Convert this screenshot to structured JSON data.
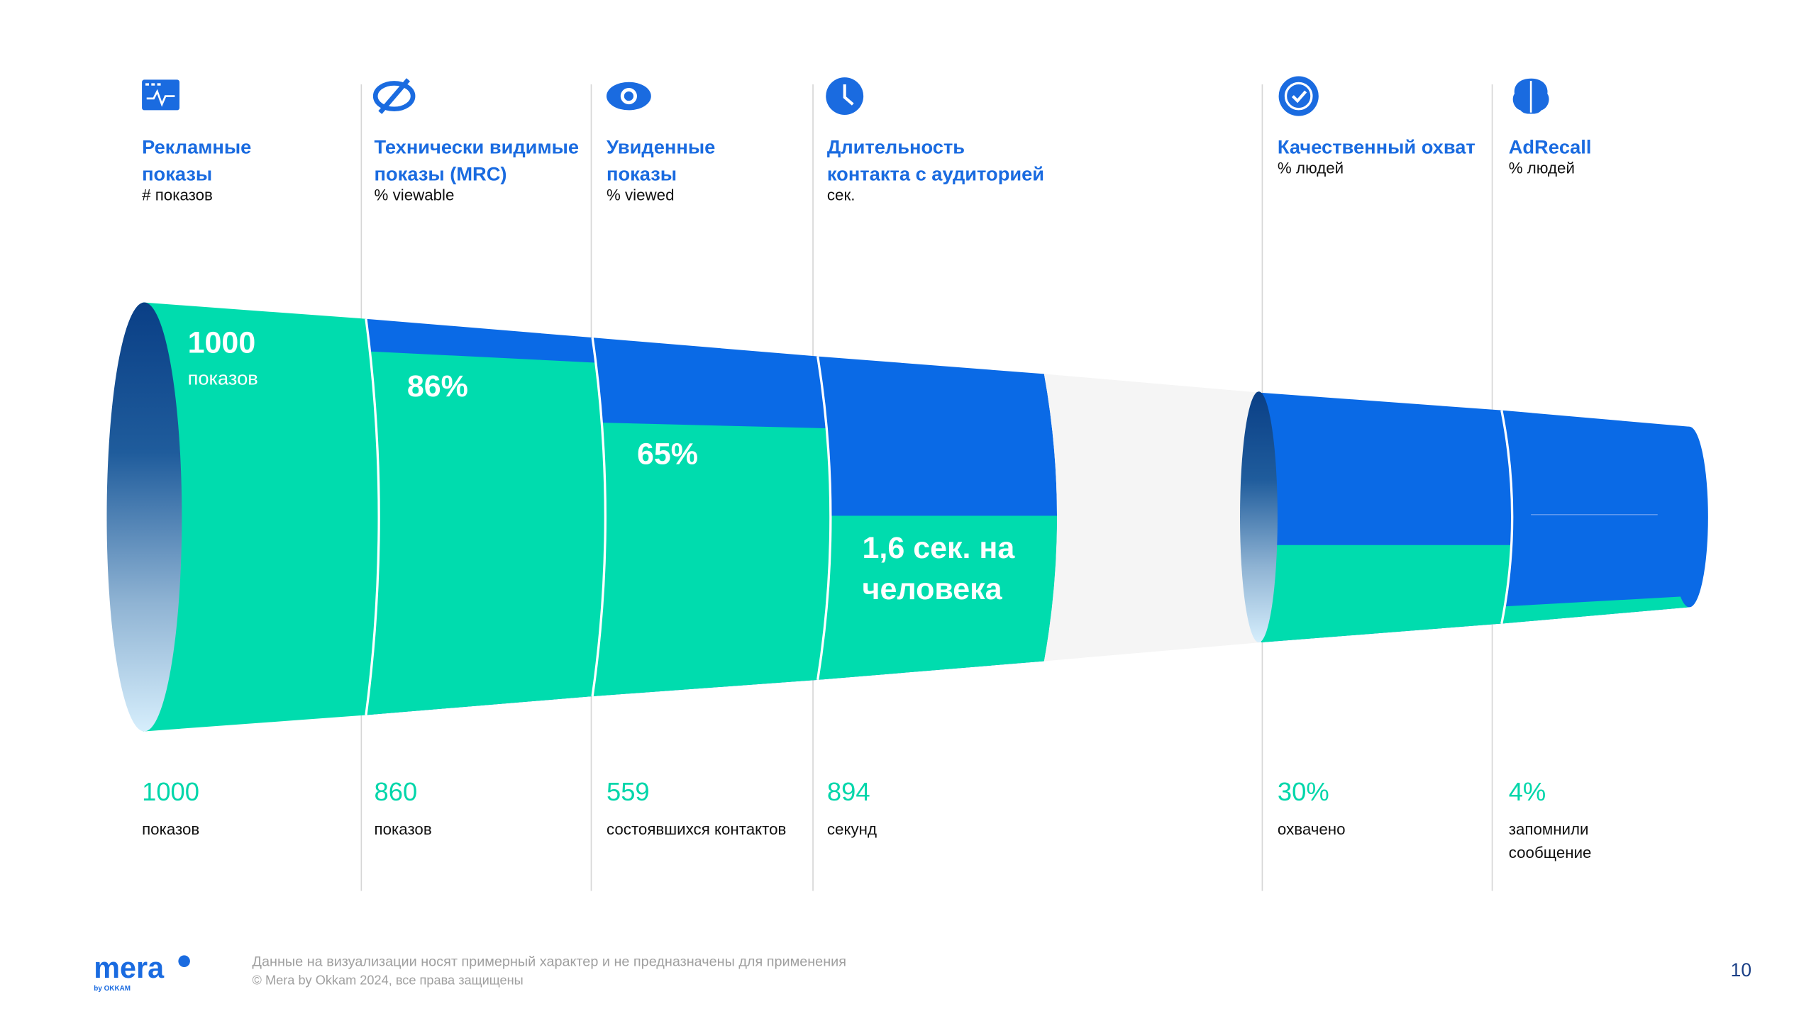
{
  "columns": [
    {
      "title": [
        "Рекламные",
        "показы"
      ],
      "unit": "# показов",
      "value": "1000",
      "caption": [
        "показов"
      ]
    },
    {
      "title": [
        "Технически видимые",
        "показы (MRC)"
      ],
      "unit": "% viewable",
      "value": "860",
      "caption": [
        "показов"
      ]
    },
    {
      "title": [
        "Увиденные",
        "показы"
      ],
      "unit": "% viewed",
      "value": "559",
      "caption": [
        "состоявшихся контактов"
      ]
    },
    {
      "title": [
        "Длительность",
        "контакта с аудиторией"
      ],
      "unit": "сек.",
      "value": "894",
      "caption": [
        "секунд"
      ]
    },
    {
      "title": [
        "Качественный охват"
      ],
      "unit": "% людей",
      "value": "30%",
      "caption": [
        "охвачено"
      ]
    },
    {
      "title": [
        "AdRecall"
      ],
      "unit": "% людей",
      "value": "4%",
      "caption": [
        "запомнили",
        "сообщение"
      ]
    }
  ],
  "funnel_labels": {
    "impressions_value": "1000",
    "impressions_unit": "показов",
    "viewable": "86%",
    "viewed": "65%",
    "duration": [
      "1,6 сек. на",
      "человека"
    ]
  },
  "footer": {
    "logo": "mera",
    "logo_sub": "by OKKAM",
    "note": "Данные на визуализации носят примерный характер и не предназначены для применения",
    "copyright": "© Mera by Okkam 2024, все права защищены",
    "page": "10"
  }
}
